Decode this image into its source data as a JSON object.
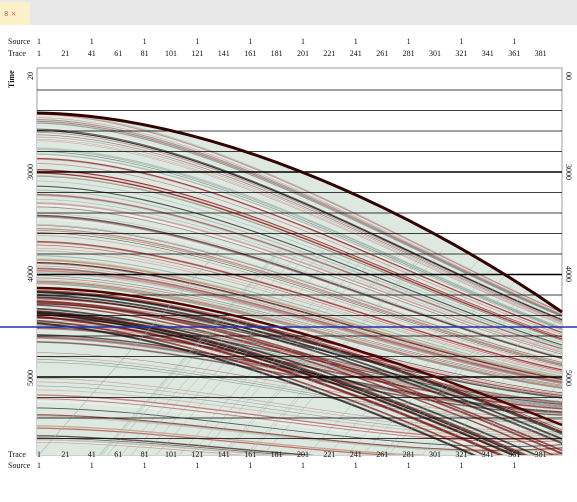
{
  "tab": {
    "label": "8 ×"
  },
  "header": {
    "source_label": "Source",
    "trace_label": "Trace",
    "source_ticks": [
      "1",
      "1",
      "1",
      "1",
      "1",
      "1",
      "1",
      "1",
      "1",
      "1"
    ],
    "trace_ticks": [
      "1",
      "21",
      "41",
      "61",
      "81",
      "101",
      "121",
      "141",
      "161",
      "181",
      "201",
      "221",
      "241",
      "261",
      "281",
      "301",
      "321",
      "341",
      "361",
      "381"
    ]
  },
  "time_axis": {
    "title": "Time",
    "left_labels": [
      "20",
      "3000",
      "4000",
      "5000"
    ],
    "right_labels": [
      "00",
      "3000",
      "4000",
      "5000"
    ]
  },
  "footer": {
    "trace_label": "Trace",
    "source_label": "Source",
    "trace_ticks": [
      "1",
      "21",
      "41",
      "61",
      "81",
      "101",
      "121",
      "141",
      "161",
      "181",
      "201",
      "221",
      "241",
      "261",
      "281",
      "301",
      "321",
      "341",
      "361",
      "381"
    ],
    "source_ticks": [
      "1",
      "1",
      "1",
      "1",
      "1",
      "1",
      "1",
      "1",
      "1",
      "1"
    ]
  }
}
